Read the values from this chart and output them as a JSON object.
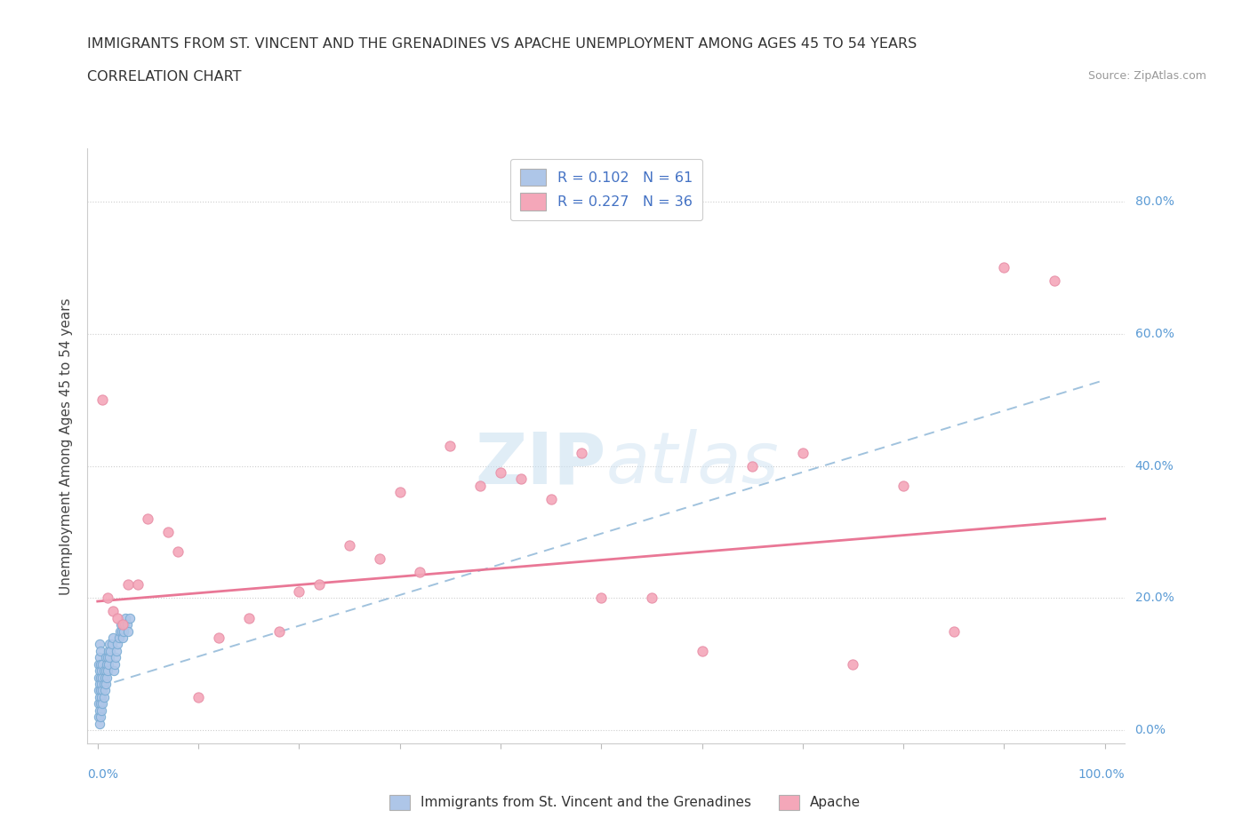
{
  "title_line1": "IMMIGRANTS FROM ST. VINCENT AND THE GRENADINES VS APACHE UNEMPLOYMENT AMONG AGES 45 TO 54 YEARS",
  "title_line2": "CORRELATION CHART",
  "source": "Source: ZipAtlas.com",
  "ylabel": "Unemployment Among Ages 45 to 54 years",
  "color_blue": "#aec6e8",
  "color_pink": "#f4a7b9",
  "color_blue_border": "#7aadd4",
  "color_pink_border": "#e890a8",
  "watermark_text": "ZIPatlas",
  "blue_scatter_x": [
    0.001,
    0.001,
    0.001,
    0.001,
    0.001,
    0.002,
    0.002,
    0.002,
    0.002,
    0.002,
    0.002,
    0.002,
    0.003,
    0.003,
    0.003,
    0.003,
    0.003,
    0.003,
    0.004,
    0.004,
    0.004,
    0.004,
    0.005,
    0.005,
    0.005,
    0.005,
    0.006,
    0.006,
    0.006,
    0.007,
    0.007,
    0.008,
    0.008,
    0.008,
    0.009,
    0.009,
    0.01,
    0.01,
    0.011,
    0.011,
    0.012,
    0.012,
    0.013,
    0.014,
    0.015,
    0.016,
    0.017,
    0.018,
    0.019,
    0.02,
    0.021,
    0.022,
    0.023,
    0.024,
    0.025,
    0.026,
    0.027,
    0.028,
    0.029,
    0.03,
    0.032
  ],
  "blue_scatter_y": [
    0.02,
    0.04,
    0.06,
    0.08,
    0.1,
    0.01,
    0.03,
    0.05,
    0.07,
    0.09,
    0.11,
    0.13,
    0.02,
    0.04,
    0.06,
    0.08,
    0.1,
    0.12,
    0.03,
    0.05,
    0.07,
    0.09,
    0.04,
    0.06,
    0.08,
    0.1,
    0.05,
    0.07,
    0.09,
    0.06,
    0.08,
    0.07,
    0.09,
    0.11,
    0.08,
    0.1,
    0.09,
    0.11,
    0.1,
    0.12,
    0.11,
    0.13,
    0.12,
    0.13,
    0.14,
    0.09,
    0.1,
    0.11,
    0.12,
    0.13,
    0.14,
    0.15,
    0.16,
    0.15,
    0.14,
    0.15,
    0.16,
    0.17,
    0.16,
    0.15,
    0.17
  ],
  "pink_scatter_x": [
    0.005,
    0.01,
    0.015,
    0.02,
    0.025,
    0.03,
    0.04,
    0.05,
    0.07,
    0.08,
    0.1,
    0.12,
    0.15,
    0.18,
    0.2,
    0.22,
    0.25,
    0.28,
    0.3,
    0.32,
    0.35,
    0.38,
    0.4,
    0.42,
    0.45,
    0.48,
    0.5,
    0.55,
    0.6,
    0.65,
    0.7,
    0.75,
    0.8,
    0.85,
    0.9,
    0.95
  ],
  "pink_scatter_y": [
    0.5,
    0.2,
    0.18,
    0.17,
    0.16,
    0.22,
    0.22,
    0.32,
    0.3,
    0.27,
    0.05,
    0.14,
    0.17,
    0.15,
    0.21,
    0.22,
    0.28,
    0.26,
    0.36,
    0.24,
    0.43,
    0.37,
    0.39,
    0.38,
    0.35,
    0.42,
    0.2,
    0.2,
    0.12,
    0.4,
    0.42,
    0.1,
    0.37,
    0.15,
    0.7,
    0.68
  ],
  "blue_trend_x": [
    0.0,
    1.0
  ],
  "blue_trend_y": [
    0.065,
    0.53
  ],
  "pink_trend_x": [
    0.0,
    1.0
  ],
  "pink_trend_y": [
    0.195,
    0.32
  ],
  "xlim": [
    -0.01,
    1.02
  ],
  "ylim": [
    -0.02,
    0.88
  ],
  "yticks": [
    0.0,
    0.2,
    0.4,
    0.6,
    0.8
  ],
  "ytick_labels_right": [
    "0.0%",
    "20.0%",
    "40.0%",
    "60.0%",
    "80.0%"
  ],
  "xtick_labels_left": "0.0%",
  "xtick_labels_right": "100.0%"
}
